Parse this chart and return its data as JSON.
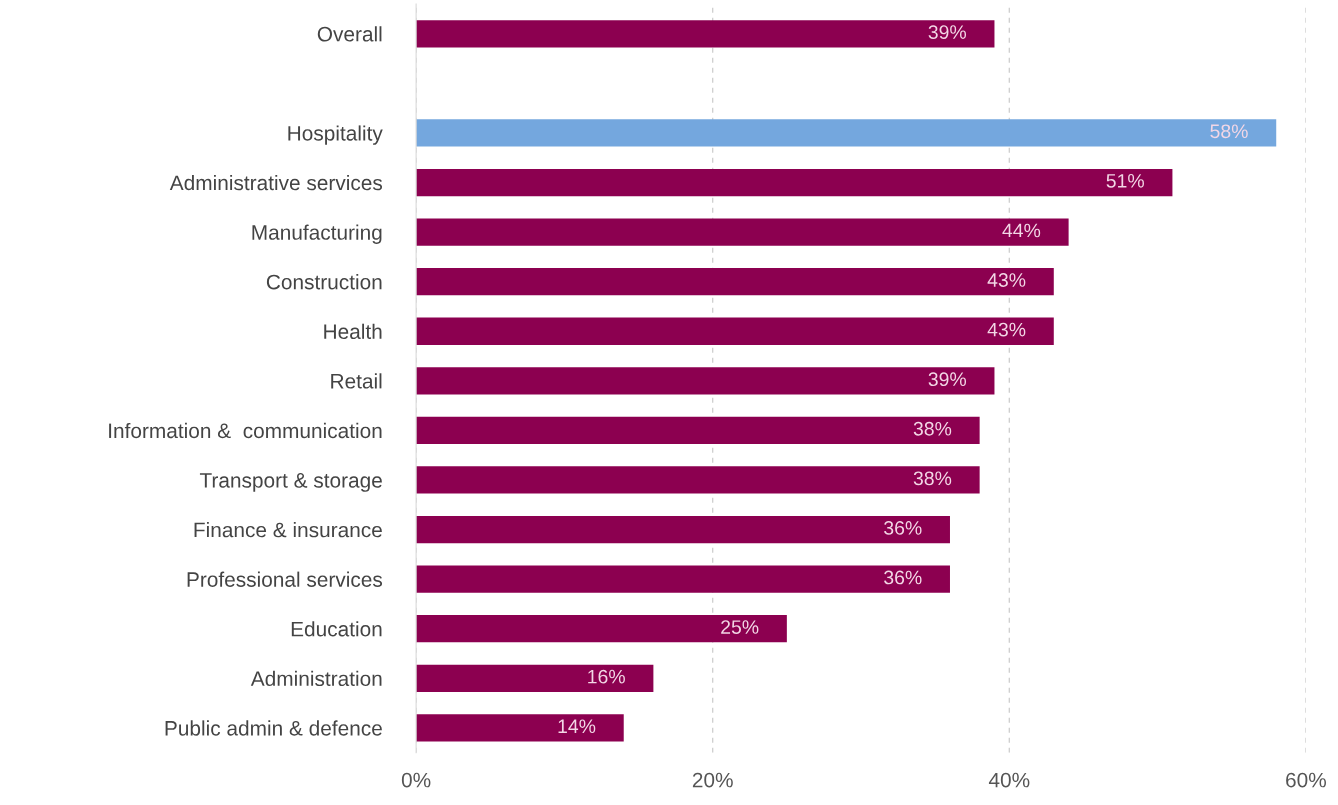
{
  "chart_data": {
    "type": "bar",
    "orientation": "horizontal",
    "categories": [
      "Overall",
      null,
      "Hospitality",
      "Administrative services",
      "Manufacturing",
      "Construction",
      "Health",
      "Retail",
      "Information &  communication",
      "Transport & storage",
      "Finance & insurance",
      "Professional services",
      "Education",
      "Administration",
      "Public admin & defence"
    ],
    "values": [
      39,
      null,
      58,
      51,
      44,
      43,
      43,
      39,
      38,
      38,
      36,
      36,
      25,
      16,
      14
    ],
    "colors": [
      "#8c0050",
      null,
      "#74a7de",
      "#8c0050",
      "#8c0050",
      "#8c0050",
      "#8c0050",
      "#8c0050",
      "#8c0050",
      "#8c0050",
      "#8c0050",
      "#8c0050",
      "#8c0050",
      "#8c0050",
      "#8c0050"
    ],
    "value_labels": [
      "39%",
      null,
      "58%",
      "51%",
      "44%",
      "43%",
      "43%",
      "39%",
      "38%",
      "38%",
      "36%",
      "36%",
      "25%",
      "16%",
      "14%"
    ],
    "xlim": [
      0,
      60
    ],
    "xticks": [
      {
        "value": 0,
        "label": "0%"
      },
      {
        "value": 20,
        "label": "20%"
      },
      {
        "value": 40,
        "label": "40%"
      },
      {
        "value": 60,
        "label": "60%"
      }
    ],
    "grid": "x"
  }
}
